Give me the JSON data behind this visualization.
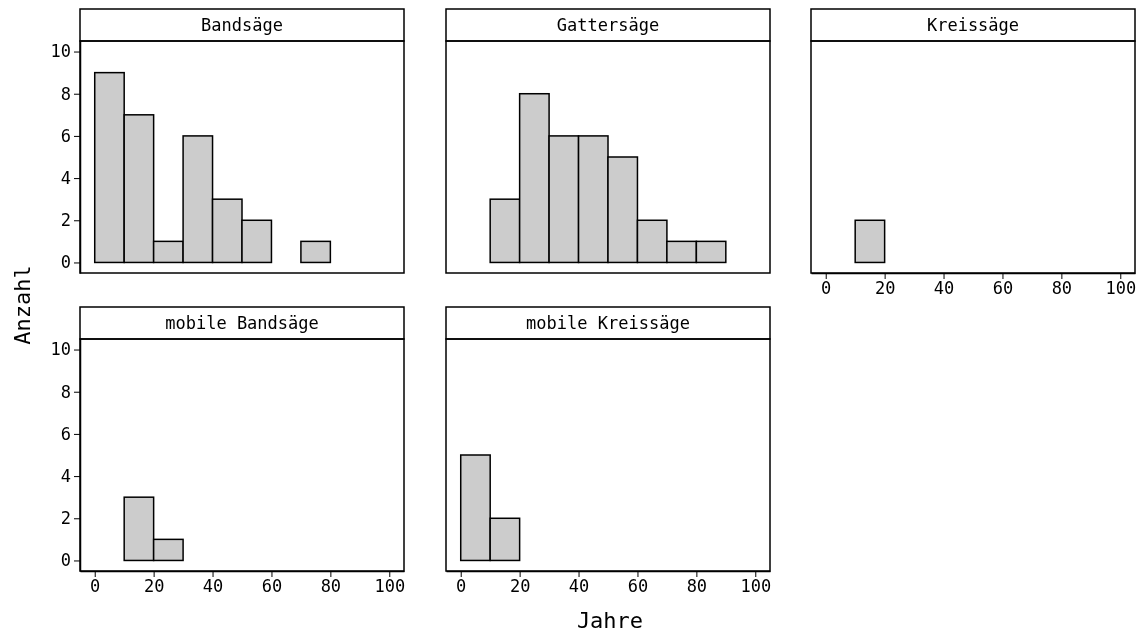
{
  "chart_data": [
    {
      "type": "histogram",
      "title": "Bandsäge",
      "ylabel": "Anzahl",
      "bins": [
        0,
        10,
        20,
        30,
        40,
        50,
        60,
        70,
        80,
        90,
        100
      ],
      "values": [
        9,
        7,
        1,
        6,
        3,
        2,
        0,
        1,
        0,
        0
      ],
      "color": "#cccccc",
      "xlim": [
        -5,
        105
      ],
      "ylim": [
        -0.5,
        10.5
      ],
      "xticks": [
        0,
        20,
        40,
        60,
        80,
        100
      ],
      "yticks": [
        0,
        2,
        4,
        6,
        8,
        10
      ],
      "tick_labels": "y"
    },
    {
      "type": "histogram",
      "title": "Gattersäge",
      "bins": [
        0,
        10,
        20,
        30,
        40,
        50,
        60,
        70,
        80,
        90,
        100
      ],
      "values": [
        0,
        3,
        8,
        6,
        6,
        5,
        2,
        1,
        1,
        0
      ],
      "color": "#cccccc",
      "xlim": [
        -5,
        105
      ],
      "ylim": [
        -0.5,
        10.5
      ],
      "xticks": [
        0,
        20,
        40,
        60,
        80,
        100
      ],
      "yticks": [
        0,
        2,
        4,
        6,
        8,
        10
      ],
      "tick_labels": false
    },
    {
      "type": "histogram",
      "title": "Kreissäge",
      "bins": [
        0,
        10,
        20,
        30,
        40,
        50,
        60,
        70,
        80,
        90,
        100
      ],
      "values": [
        0,
        2,
        0,
        0,
        0,
        0,
        0,
        0,
        0,
        0
      ],
      "color": "#cccccc",
      "xlim": [
        -5,
        105
      ],
      "ylim": [
        -0.5,
        10.5
      ],
      "xticks": [
        0,
        20,
        40,
        60,
        80,
        100
      ],
      "yticks": [
        0,
        2,
        4,
        6,
        8,
        10
      ],
      "tick_labels": "x"
    },
    {
      "type": "histogram",
      "title": "mobile Bandsäge",
      "bins": [
        0,
        10,
        20,
        30,
        40,
        50,
        60,
        70,
        80,
        90,
        100
      ],
      "values": [
        0,
        3,
        1,
        0,
        0,
        0,
        0,
        0,
        0,
        0
      ],
      "color": "#cccccc",
      "xlim": [
        -5,
        105
      ],
      "ylim": [
        -0.5,
        10.5
      ],
      "xticks": [
        0,
        20,
        40,
        60,
        80,
        100
      ],
      "yticks": [
        0,
        2,
        4,
        6,
        8,
        10
      ]
    },
    {
      "type": "histogram",
      "title": "mobile Kreissäge",
      "xlabel": "Jahre",
      "bins": [
        0,
        10,
        20,
        30,
        40,
        50,
        60,
        70,
        80,
        90,
        100
      ],
      "values": [
        5,
        2,
        0,
        0,
        0,
        0,
        0,
        0,
        0,
        0
      ],
      "color": "#cccccc",
      "xlim": [
        -5,
        105
      ],
      "ylim": [
        -0.5,
        10.5
      ],
      "xticks": [
        0,
        20,
        40,
        60,
        80,
        100
      ],
      "yticks": [
        0,
        2,
        4,
        6,
        8,
        10
      ],
      "tick_labels": "x"
    }
  ]
}
